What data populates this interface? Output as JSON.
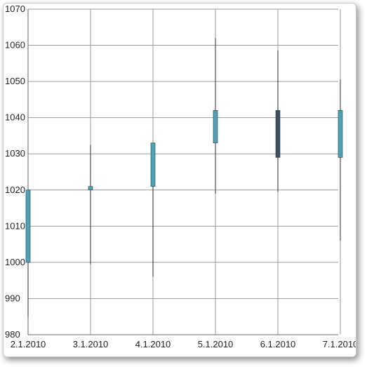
{
  "chart_data": {
    "type": "candlestick",
    "title": "",
    "xlabel": "",
    "ylabel": "",
    "ylim": [
      980,
      1070
    ],
    "ytick_step": 10,
    "grid": true,
    "categories": [
      "2.1.2010",
      "3.1.2010",
      "4.1.2010",
      "5.1.2010",
      "6.1.2010",
      "7.1.2010"
    ],
    "candles": [
      {
        "date": "2.1.2010",
        "open": 1000,
        "close": 1020,
        "high": 1020,
        "low": 985
      },
      {
        "date": "3.1.2010",
        "open": 1020,
        "close": 1021,
        "high": 1032.5,
        "low": 999.5
      },
      {
        "date": "4.1.2010",
        "open": 1021,
        "close": 1033,
        "high": 1033,
        "low": 996
      },
      {
        "date": "5.1.2010",
        "open": 1033,
        "close": 1042,
        "high": 1062,
        "low": 1019
      },
      {
        "date": "6.1.2010",
        "open": 1042,
        "close": 1029,
        "high": 1058.5,
        "low": 1019.5
      },
      {
        "date": "7.1.2010",
        "open": 1029,
        "close": 1042,
        "high": 1050.5,
        "low": 1006
      }
    ],
    "colors": {
      "up": "#4fa3b8",
      "down": "#3e4f62",
      "wick": "#2a2a2a",
      "grid": "#9a9a9a",
      "axis": "#666666"
    }
  }
}
